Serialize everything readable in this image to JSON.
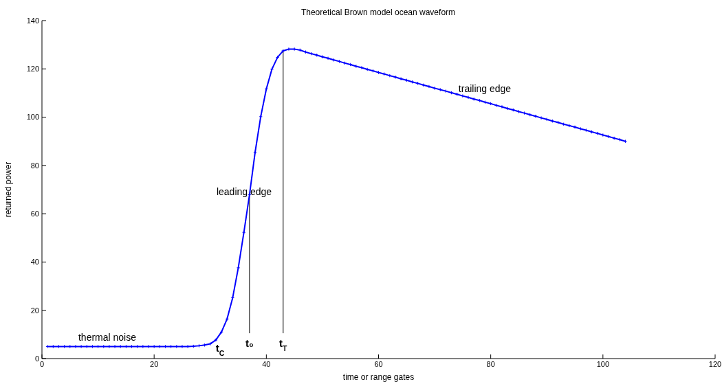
{
  "chart_data": {
    "type": "line",
    "title": "Theoretical Brown model ocean waveform",
    "xlabel": "time or range gates",
    "ylabel": "returned power",
    "x": [
      1,
      2,
      3,
      4,
      5,
      6,
      7,
      8,
      9,
      10,
      11,
      12,
      13,
      14,
      15,
      16,
      17,
      18,
      19,
      20,
      21,
      22,
      23,
      24,
      25,
      26,
      27,
      28,
      29,
      30,
      31,
      32,
      33,
      34,
      35,
      36,
      37,
      38,
      39,
      40,
      41,
      42,
      43,
      44,
      45,
      46,
      47,
      48,
      49,
      50,
      51,
      52,
      53,
      54,
      55,
      56,
      57,
      58,
      59,
      60,
      61,
      62,
      63,
      64,
      65,
      66,
      67,
      68,
      69,
      70,
      71,
      72,
      73,
      74,
      75,
      76,
      77,
      78,
      79,
      80,
      81,
      82,
      83,
      84,
      85,
      86,
      87,
      88,
      89,
      90,
      91,
      92,
      93,
      94,
      95,
      96,
      97,
      98,
      99,
      100,
      101,
      102,
      103,
      104
    ],
    "series": [
      {
        "color": "#0000ff",
        "values": [
          5,
          5,
          5,
          5,
          5,
          5,
          5,
          5,
          5,
          5,
          5,
          5,
          5,
          5,
          5,
          5,
          5,
          5,
          5,
          5,
          5,
          5,
          5,
          5,
          5,
          5,
          5.1,
          5.3,
          5.6,
          6.1,
          7.7,
          11.0,
          16.4,
          25.2,
          37.6,
          52.3,
          67.9,
          85.5,
          100.2,
          111.7,
          119.9,
          124.8,
          127.5,
          128.2,
          128.2,
          127.8,
          127.0,
          126.3,
          125.7,
          125.0,
          124.4,
          123.7,
          123.1,
          122.4,
          121.8,
          121.1,
          120.5,
          119.8,
          119.2,
          118.5,
          117.9,
          117.2,
          116.6,
          115.9,
          115.3,
          114.6,
          114.0,
          113.3,
          112.7,
          112.0,
          111.4,
          110.8,
          110.1,
          109.5,
          108.8,
          108.2,
          107.5,
          106.9,
          106.2,
          105.6,
          104.9,
          104.3,
          103.6,
          103.0,
          102.3,
          101.7,
          101.0,
          100.4,
          99.7,
          99.1,
          98.4,
          97.8,
          97.1,
          96.5,
          95.9,
          95.2,
          94.6,
          93.9,
          93.3,
          92.6,
          92.0,
          91.3,
          90.7,
          90.0
        ]
      }
    ],
    "marker": "cross",
    "line_style": "solid",
    "grid": false,
    "xlim": [
      0,
      120
    ],
    "xticks": [
      0,
      20,
      40,
      60,
      80,
      100,
      120
    ],
    "ylim": [
      0,
      140
    ],
    "yticks": [
      0,
      20,
      40,
      60,
      80,
      100,
      120,
      140
    ],
    "ref_lines": [
      {
        "axis": "x",
        "value": 37,
        "label": "t₀",
        "color": "#000000"
      },
      {
        "axis": "x",
        "value": 43,
        "label": "t$_{T}$",
        "color": "#000000"
      }
    ],
    "annotations": [
      "t$_{C}$",
      "thermal noise",
      "leading edge",
      "trailing edge"
    ]
  }
}
